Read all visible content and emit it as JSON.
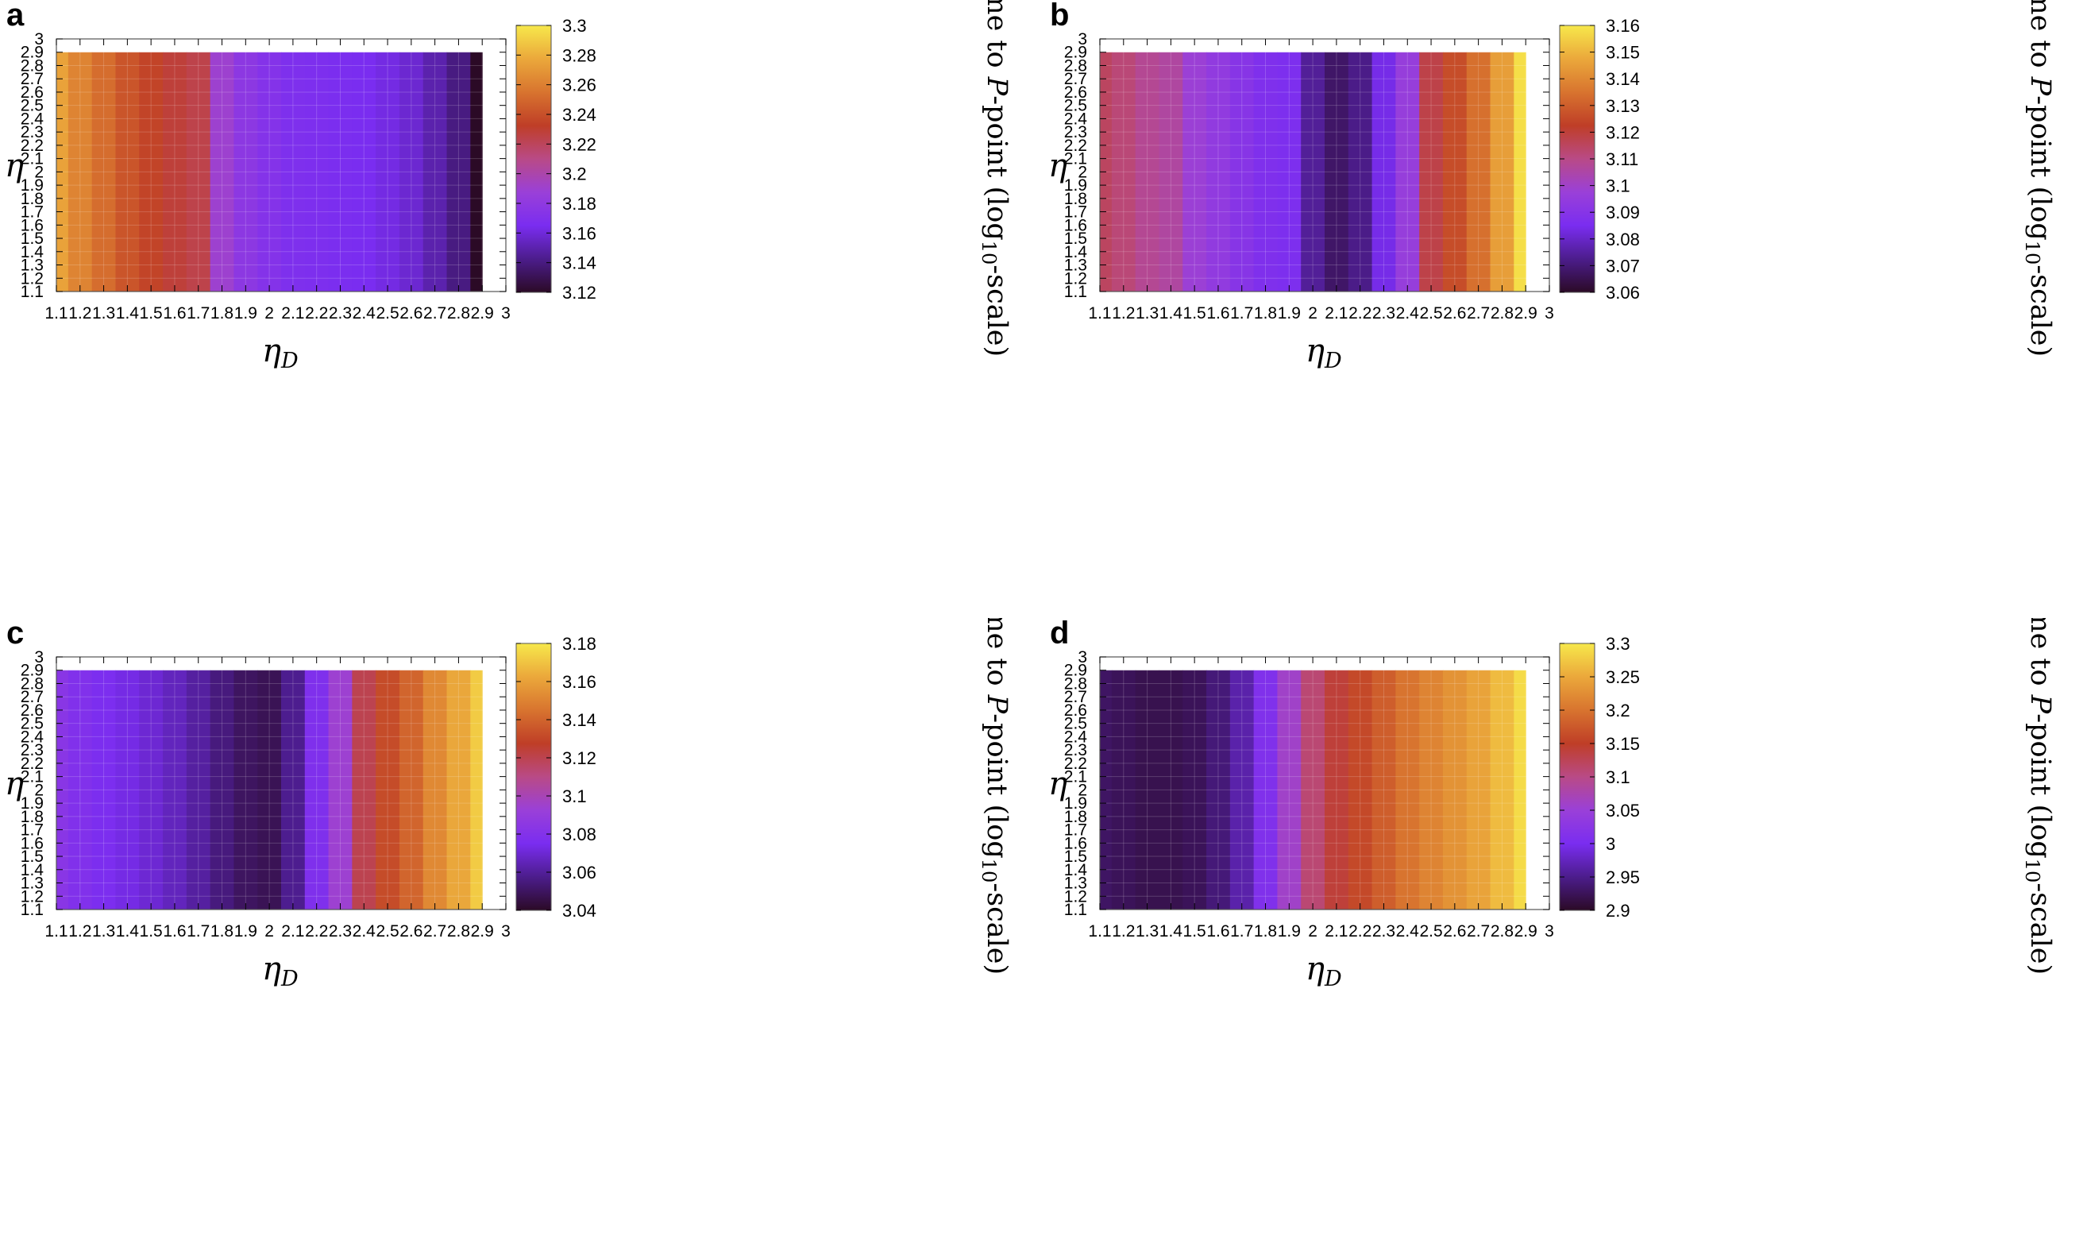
{
  "colors": {
    "colormap": [
      "#2b0a26",
      "#4c1d8c",
      "#7a2df0",
      "#9a40d8",
      "#b94a86",
      "#bf3e27",
      "#d8742f",
      "#eba83b",
      "#f7e84b"
    ]
  },
  "chart_data": [
    {
      "type": "heatmap",
      "panel": "a",
      "xlabel_main": "η",
      "xlabel_sub": "D",
      "ylabel": "η",
      "colorbar_label_prefix": "Time to ",
      "colorbar_label_var": "P",
      "colorbar_label_mid": "-point (log",
      "colorbar_label_sub": "10",
      "colorbar_label_suffix": "-scale)",
      "xlim": [
        1.1,
        3
      ],
      "ylim": [
        1.1,
        3
      ],
      "data_x_range": [
        1.1,
        2.9
      ],
      "data_y_range": [
        1.1,
        2.9
      ],
      "x_ticks": [
        "1.1",
        "1.2",
        "1.3",
        "1.4",
        "1.5",
        "1.6",
        "1.7",
        "1.8",
        "1.9",
        "2",
        "2.1",
        "2.2",
        "2.3",
        "2.4",
        "2.5",
        "2.6",
        "2.7",
        "2.8",
        "2.9",
        "3"
      ],
      "y_ticks": [
        "1.1",
        "1.2",
        "1.3",
        "1.4",
        "1.5",
        "1.6",
        "1.7",
        "1.8",
        "1.9",
        "2",
        "2.1",
        "2.2",
        "2.3",
        "2.4",
        "2.5",
        "2.6",
        "2.7",
        "2.8",
        "2.9",
        "3"
      ],
      "colorbar_range": [
        3.12,
        3.3
      ],
      "colorbar_ticks": [
        "3.12",
        "3.14",
        "3.16",
        "3.18",
        "3.2",
        "3.22",
        "3.24",
        "3.26",
        "3.28",
        "3.3"
      ],
      "eta_D": [
        1.1,
        1.2,
        1.3,
        1.4,
        1.5,
        1.6,
        1.7,
        1.8,
        1.9,
        2.0,
        2.1,
        2.2,
        2.3,
        2.4,
        2.5,
        2.6,
        2.7,
        2.8,
        2.9
      ],
      "values": [
        3.275,
        3.262,
        3.252,
        3.242,
        3.235,
        3.228,
        3.224,
        3.19,
        3.178,
        3.172,
        3.168,
        3.167,
        3.166,
        3.165,
        3.162,
        3.158,
        3.15,
        3.14,
        3.12
      ]
    },
    {
      "type": "heatmap",
      "panel": "b",
      "xlabel_main": "η",
      "xlabel_sub": "D",
      "ylabel": "η",
      "colorbar_label_prefix": "Time to ",
      "colorbar_label_var": "P",
      "colorbar_label_mid": "-point (log",
      "colorbar_label_sub": "10",
      "colorbar_label_suffix": "-scale)",
      "xlim": [
        1.1,
        3
      ],
      "ylim": [
        1.1,
        3
      ],
      "data_x_range": [
        1.1,
        2.9
      ],
      "data_y_range": [
        1.1,
        2.9
      ],
      "x_ticks": [
        "1.1",
        "1.2",
        "1.3",
        "1.4",
        "1.5",
        "1.6",
        "1.7",
        "1.8",
        "1.9",
        "2",
        "2.1",
        "2.2",
        "2.3",
        "2.4",
        "2.5",
        "2.6",
        "2.7",
        "2.8",
        "2.9",
        "3"
      ],
      "y_ticks": [
        "1.1",
        "1.2",
        "1.3",
        "1.4",
        "1.5",
        "1.6",
        "1.7",
        "1.8",
        "1.9",
        "2",
        "2.1",
        "2.2",
        "2.3",
        "2.4",
        "2.5",
        "2.6",
        "2.7",
        "2.8",
        "2.9",
        "3"
      ],
      "colorbar_range": [
        3.06,
        3.16
      ],
      "colorbar_ticks": [
        "3.06",
        "3.07",
        "3.08",
        "3.09",
        "3.1",
        "3.11",
        "3.12",
        "3.13",
        "3.14",
        "3.15",
        "3.16"
      ],
      "eta_D": [
        1.1,
        1.2,
        1.3,
        1.4,
        1.5,
        1.6,
        1.7,
        1.8,
        1.9,
        2.0,
        2.1,
        2.2,
        2.3,
        2.4,
        2.5,
        2.6,
        2.7,
        2.8,
        2.9
      ],
      "values": [
        3.115,
        3.112,
        3.108,
        3.106,
        3.098,
        3.094,
        3.09,
        3.087,
        3.086,
        3.074,
        3.068,
        3.072,
        3.084,
        3.096,
        3.118,
        3.126,
        3.134,
        3.145,
        3.158
      ]
    },
    {
      "type": "heatmap",
      "panel": "c",
      "xlabel_main": "η",
      "xlabel_sub": "D",
      "ylabel": "η",
      "colorbar_label_prefix": "Time to ",
      "colorbar_label_var": "P",
      "colorbar_label_mid": "-point (log",
      "colorbar_label_sub": "10",
      "colorbar_label_suffix": "-scale)",
      "xlim": [
        1.1,
        3
      ],
      "ylim": [
        1.1,
        3
      ],
      "data_x_range": [
        1.1,
        2.9
      ],
      "data_y_range": [
        1.1,
        2.9
      ],
      "x_ticks": [
        "1.1",
        "1.2",
        "1.3",
        "1.4",
        "1.5",
        "1.6",
        "1.7",
        "1.8",
        "1.9",
        "2",
        "2.1",
        "2.2",
        "2.3",
        "2.4",
        "2.5",
        "2.6",
        "2.7",
        "2.8",
        "2.9",
        "3"
      ],
      "y_ticks": [
        "1.1",
        "1.2",
        "1.3",
        "1.4",
        "1.5",
        "1.6",
        "1.7",
        "1.8",
        "1.9",
        "2",
        "2.1",
        "2.2",
        "2.3",
        "2.4",
        "2.5",
        "2.6",
        "2.7",
        "2.8",
        "2.9",
        "3"
      ],
      "colorbar_range": [
        3.04,
        3.18
      ],
      "colorbar_ticks": [
        "3.04",
        "3.06",
        "3.08",
        "3.1",
        "3.12",
        "3.14",
        "3.16",
        "3.18"
      ],
      "eta_D": [
        1.1,
        1.2,
        1.3,
        1.4,
        1.5,
        1.6,
        1.7,
        1.8,
        1.9,
        2.0,
        2.1,
        2.2,
        2.3,
        2.4,
        2.5,
        2.6,
        2.7,
        2.8,
        2.9
      ],
      "values": [
        3.083,
        3.079,
        3.076,
        3.073,
        3.07,
        3.066,
        3.061,
        3.055,
        3.05,
        3.048,
        3.058,
        3.078,
        3.094,
        3.12,
        3.132,
        3.14,
        3.152,
        3.162,
        3.172
      ]
    },
    {
      "type": "heatmap",
      "panel": "d",
      "xlabel_main": "η",
      "xlabel_sub": "D",
      "ylabel": "η",
      "colorbar_label_prefix": "Time to ",
      "colorbar_label_var": "P",
      "colorbar_label_mid": "-point (log",
      "colorbar_label_sub": "10",
      "colorbar_label_suffix": "-scale)",
      "xlim": [
        1.1,
        3
      ],
      "ylim": [
        1.1,
        3
      ],
      "data_x_range": [
        1.1,
        2.9
      ],
      "data_y_range": [
        1.1,
        2.9
      ],
      "x_ticks": [
        "1.1",
        "1.2",
        "1.3",
        "1.4",
        "1.5",
        "1.6",
        "1.7",
        "1.8",
        "1.9",
        "2",
        "2.1",
        "2.2",
        "2.3",
        "2.4",
        "2.5",
        "2.6",
        "2.7",
        "2.8",
        "2.9",
        "3"
      ],
      "y_ticks": [
        "1.1",
        "1.2",
        "1.3",
        "1.4",
        "1.5",
        "1.6",
        "1.7",
        "1.8",
        "1.9",
        "2",
        "2.1",
        "2.2",
        "2.3",
        "2.4",
        "2.5",
        "2.6",
        "2.7",
        "2.8",
        "2.9",
        "3"
      ],
      "colorbar_range": [
        2.9,
        3.3
      ],
      "colorbar_ticks": [
        "2.9",
        "2.95",
        "3",
        "3.05",
        "3.1",
        "3.15",
        "3.2",
        "3.25",
        "3.3"
      ],
      "eta_D": [
        1.1,
        1.2,
        1.3,
        1.4,
        1.5,
        1.6,
        1.7,
        1.8,
        1.9,
        2.0,
        2.1,
        2.2,
        2.3,
        2.4,
        2.5,
        2.6,
        2.7,
        2.8,
        2.9
      ],
      "values": [
        2.93,
        2.925,
        2.92,
        2.92,
        2.925,
        2.94,
        2.965,
        3.01,
        3.06,
        3.11,
        3.14,
        3.16,
        3.18,
        3.2,
        3.215,
        3.23,
        3.245,
        3.265,
        3.29
      ]
    }
  ]
}
